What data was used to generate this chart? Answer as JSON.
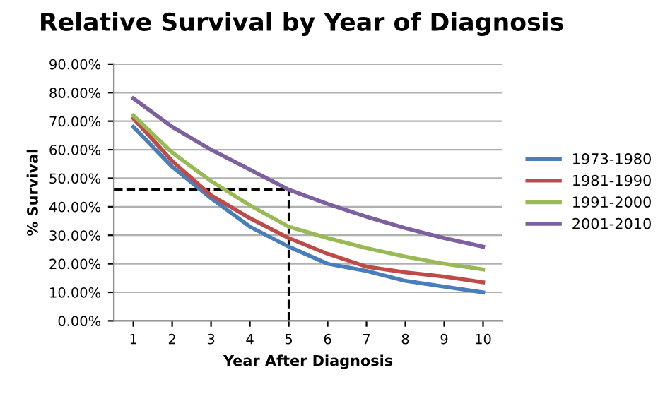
{
  "chart_data": {
    "type": "line",
    "title": "Relative Survival by Year of Diagnosis",
    "xlabel": "Year After Diagnosis",
    "ylabel": "% Survival",
    "categories": [
      "1",
      "2",
      "3",
      "4",
      "5",
      "6",
      "7",
      "8",
      "9",
      "10"
    ],
    "series": [
      {
        "name": "1973-1980",
        "color": "#4a7ebb",
        "values": [
          68,
          54,
          43,
          33,
          26,
          20,
          17.5,
          14,
          12,
          10
        ]
      },
      {
        "name": "1981-1990",
        "color": "#be4b48",
        "values": [
          71,
          56,
          44,
          36,
          29,
          23.5,
          19,
          17,
          15.5,
          13.5
        ]
      },
      {
        "name": "1991-2000",
        "color": "#98b954",
        "values": [
          72,
          59,
          49,
          40.5,
          33,
          29,
          25.5,
          22.5,
          20,
          18
        ]
      },
      {
        "name": "2001-2010",
        "color": "#7d60a0",
        "values": [
          78,
          68,
          60,
          53,
          46,
          41,
          36.5,
          32.5,
          29,
          26
        ]
      }
    ],
    "ylim": [
      0,
      90
    ],
    "yticks": [
      {
        "value": 0,
        "label": "0.00%"
      },
      {
        "value": 10,
        "label": "10.00%"
      },
      {
        "value": 20,
        "label": "20.00%"
      },
      {
        "value": 30,
        "label": "30.00%"
      },
      {
        "value": 40,
        "label": "40.00%"
      },
      {
        "value": 50,
        "label": "50.00%"
      },
      {
        "value": 60,
        "label": "60.00%"
      },
      {
        "value": 70,
        "label": "70.00%"
      },
      {
        "value": 80,
        "label": "80.00%"
      },
      {
        "value": 90,
        "label": "90.00%"
      }
    ],
    "ref_lines": [
      {
        "axis": "y",
        "value": 46,
        "color": "#000000",
        "line_style": "dashed"
      },
      {
        "axis": "x",
        "value": "5",
        "color": "#000000",
        "line_style": "dashed"
      }
    ],
    "grid": "y",
    "legend": "right",
    "marker": "none",
    "line_style": "solid"
  }
}
